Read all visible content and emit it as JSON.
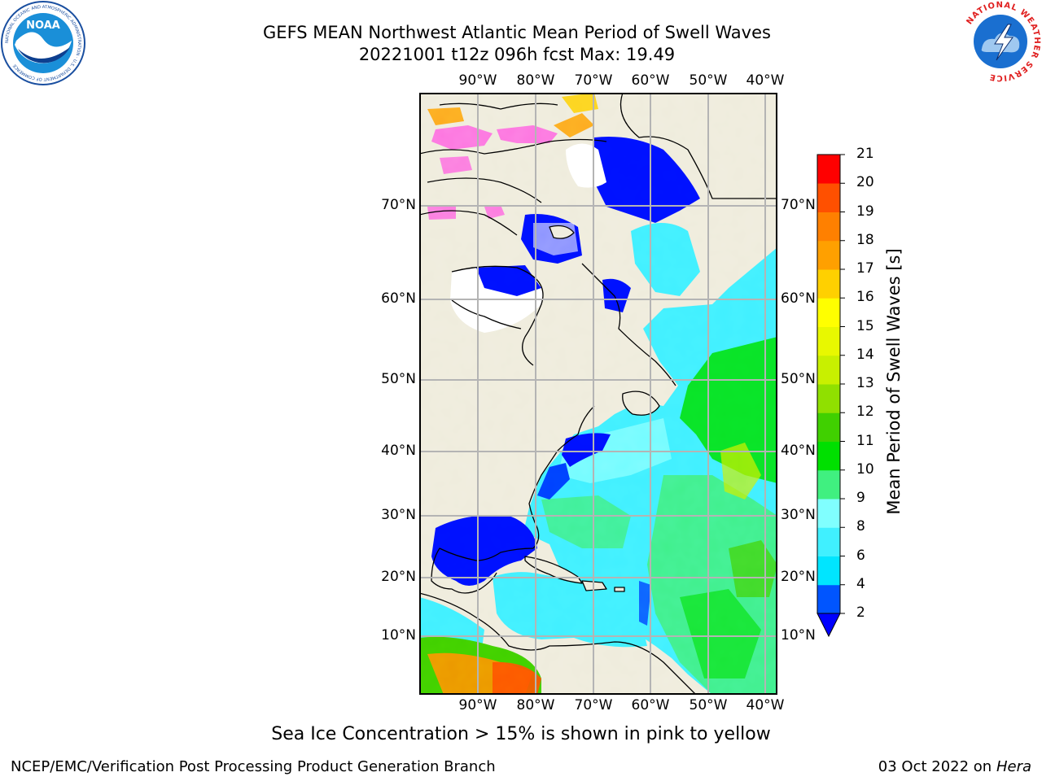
{
  "header": {
    "title_line1": "GEFS MEAN Northwest Atlantic Mean Period of Swell Waves",
    "title_line2": "20221001 t12z 096h fcst   Max: 19.49"
  },
  "logos": {
    "noaa_text": "NOAA",
    "noaa_ring": "NATIONAL OCEANIC AND ATMOSPHERIC ADMINISTRATION · U.S. DEPARTMENT OF COMMERCE",
    "nws_ring": "NATIONAL WEATHER SERVICE"
  },
  "map": {
    "lon_labels": [
      "90°W",
      "80°W",
      "70°W",
      "60°W",
      "50°W",
      "40°W"
    ],
    "lat_labels": [
      "70°N",
      "60°N",
      "50°N",
      "40°N",
      "30°N",
      "20°N",
      "10°N"
    ],
    "land_color": "#efecdc",
    "gridline_color": "#b4b4b4"
  },
  "colorbar": {
    "label": "Mean Period of Swell Waves [s]",
    "ticks": [
      "2",
      "4",
      "6",
      "8",
      "9",
      "10",
      "11",
      "12",
      "13",
      "14",
      "15",
      "16",
      "17",
      "18",
      "19",
      "20",
      "21"
    ],
    "colors": [
      "#0055ff",
      "#00e5ff",
      "#40f0ff",
      "#80ffff",
      "#40f080",
      "#00e000",
      "#40d000",
      "#90e000",
      "#c8f000",
      "#e8f800",
      "#ffff00",
      "#ffd000",
      "#ffa000",
      "#ff8000",
      "#ff5000",
      "#ff2000",
      "#ff0000"
    ],
    "extend_color": "#0000ff"
  },
  "caption": "Sea Ice Concentration > 15% is shown in pink to yellow",
  "footer": {
    "left": "NCEP/EMC/Verification Post Processing Product Generation Branch",
    "right_date": "03 Oct 2022 on ",
    "right_host": "Hera"
  }
}
